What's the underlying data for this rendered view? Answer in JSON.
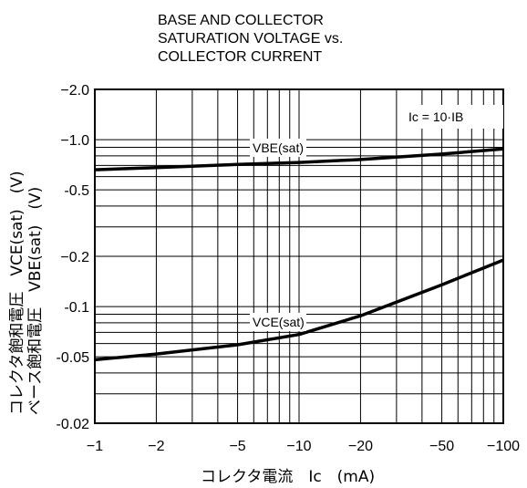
{
  "chart_data": {
    "type": "line",
    "title_lines": [
      "BASE AND COLLECTOR",
      "SATURATION VOLTAGE vs.",
      "COLLECTOR CURRENT"
    ],
    "x_scale": "log",
    "y_scale": "log",
    "xlim": [
      1,
      100
    ],
    "ylim": [
      0.02,
      2.0
    ],
    "x_ticks": [
      1,
      2,
      5,
      10,
      20,
      50,
      100
    ],
    "x_tick_labels": [
      "−1",
      "−2",
      "−5",
      "−10",
      "−20",
      "−50",
      "−100"
    ],
    "y_ticks": [
      2.0,
      1.0,
      0.5,
      0.2,
      0.1,
      0.05,
      0.02
    ],
    "y_tick_labels": [
      "−2.0",
      "−1.0",
      "-0.5",
      "−0.2",
      "-0.1",
      "-0.05",
      "-0.02"
    ],
    "xlabel": "コレクタ電流　Ic　(mA)",
    "ylabel_lines": [
      "コレクタ飽和電圧　VCE(sat)　(V)",
      "ベース飽和電圧　VBE(sat)　(V)"
    ],
    "condition": "Ic = 10·IB",
    "grid": true,
    "series": [
      {
        "name": "VBE(sat)",
        "x": [
          1,
          2,
          5,
          10,
          20,
          50,
          100
        ],
        "y": [
          0.66,
          0.68,
          0.71,
          0.73,
          0.76,
          0.82,
          0.88
        ]
      },
      {
        "name": "VCE(sat)",
        "x": [
          1,
          2,
          5,
          10,
          20,
          50,
          100
        ],
        "y": [
          0.048,
          0.052,
          0.059,
          0.068,
          0.088,
          0.135,
          0.19
        ]
      }
    ]
  }
}
